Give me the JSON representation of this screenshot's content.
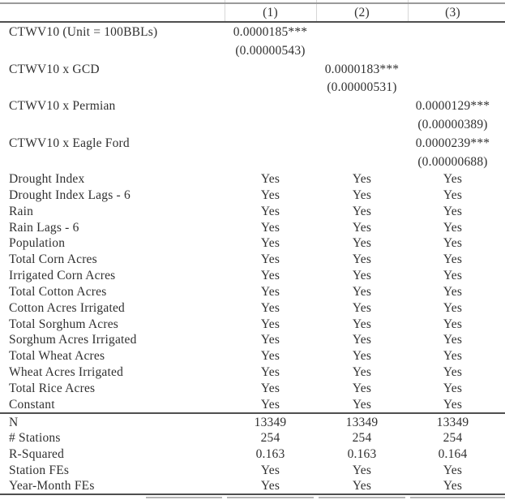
{
  "table": {
    "columns": [
      "(1)",
      "(2)",
      "(3)"
    ],
    "coefficients": [
      {
        "label": "CTWV10 (Unit = 100BBLs)",
        "estimates": [
          "0.0000185***",
          "",
          ""
        ],
        "std_errors": [
          "(0.00000543)",
          "",
          ""
        ]
      },
      {
        "label": "CTWV10 x GCD",
        "estimates": [
          "",
          "0.0000183***",
          ""
        ],
        "std_errors": [
          "",
          "(0.00000531)",
          ""
        ]
      },
      {
        "label": "CTWV10 x Permian",
        "estimates": [
          "",
          "",
          "0.0000129***"
        ],
        "std_errors": [
          "",
          "",
          "(0.00000389)"
        ]
      },
      {
        "label": "CTWV10 x Eagle Ford",
        "estimates": [
          "",
          "",
          "0.0000239***"
        ],
        "std_errors": [
          "",
          "",
          "(0.00000688)"
        ]
      }
    ],
    "controls": [
      {
        "label": "Drought Index",
        "values": [
          "Yes",
          "Yes",
          "Yes"
        ]
      },
      {
        "label": "Drought Index Lags - 6",
        "values": [
          "Yes",
          "Yes",
          "Yes"
        ]
      },
      {
        "label": "Rain",
        "values": [
          "Yes",
          "Yes",
          "Yes"
        ]
      },
      {
        "label": "Rain Lags - 6",
        "values": [
          "Yes",
          "Yes",
          "Yes"
        ]
      },
      {
        "label": "Population",
        "values": [
          "Yes",
          "Yes",
          "Yes"
        ]
      },
      {
        "label": "Total Corn Acres",
        "values": [
          "Yes",
          "Yes",
          "Yes"
        ]
      },
      {
        "label": "Irrigated Corn Acres",
        "values": [
          "Yes",
          "Yes",
          "Yes"
        ]
      },
      {
        "label": "Total Cotton Acres",
        "values": [
          "Yes",
          "Yes",
          "Yes"
        ]
      },
      {
        "label": "Cotton Acres Irrigated",
        "values": [
          "Yes",
          "Yes",
          "Yes"
        ]
      },
      {
        "label": "Total Sorghum Acres",
        "values": [
          "Yes",
          "Yes",
          "Yes"
        ]
      },
      {
        "label": "Sorghum Acres Irrigated",
        "values": [
          "Yes",
          "Yes",
          "Yes"
        ]
      },
      {
        "label": "Total Wheat Acres",
        "values": [
          "Yes",
          "Yes",
          "Yes"
        ]
      },
      {
        "label": "Wheat Acres Irrigated",
        "values": [
          "Yes",
          "Yes",
          "Yes"
        ]
      },
      {
        "label": "Total Rice Acres",
        "values": [
          "Yes",
          "Yes",
          "Yes"
        ]
      },
      {
        "label": "Constant",
        "values": [
          "Yes",
          "Yes",
          "Yes"
        ]
      }
    ],
    "statistics": [
      {
        "label": "N",
        "values": [
          "13349",
          "13349",
          "13349"
        ]
      },
      {
        "label": "# Stations",
        "values": [
          "254",
          "254",
          "254"
        ]
      },
      {
        "label": "R-Squared",
        "values": [
          "0.163",
          "0.163",
          "0.164"
        ]
      },
      {
        "label": "Station FEs",
        "values": [
          "Yes",
          "Yes",
          "Yes"
        ]
      },
      {
        "label": "Year-Month FEs",
        "values": [
          "Yes",
          "Yes",
          "Yes"
        ]
      }
    ]
  }
}
